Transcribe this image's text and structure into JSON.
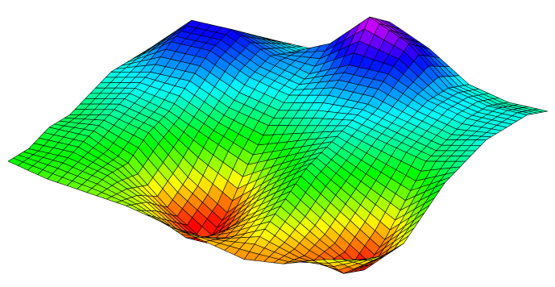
{
  "chart_data": {
    "type": "surface",
    "zlim": [
      -1,
      1
    ],
    "colormap": [
      "#ffff00",
      "#ff0000",
      "#ffff00",
      "#00ff00",
      "#00ffff",
      "#0000ff",
      "#ff00ff"
    ],
    "mesh_color": "#000000",
    "z": [
      [
        0,
        -0.1,
        -0.15,
        -0.2,
        -0.3,
        -0.4,
        -0.5,
        -0.45,
        -0.3,
        -0.2
      ],
      [
        0,
        0,
        -0.1,
        -0.3,
        -0.6,
        -0.5,
        -0.3,
        -0.5,
        -0.6,
        -0.3
      ],
      [
        0.1,
        0.1,
        -0.1,
        -0.5,
        -0.8,
        -0.4,
        -0.1,
        -0.4,
        -0.7,
        -0.3
      ],
      [
        0.1,
        0.2,
        0.1,
        -0.3,
        -0.6,
        -0.2,
        0.1,
        -0.2,
        -0.5,
        -0.1
      ],
      [
        0.2,
        0.3,
        0.2,
        0,
        -0.2,
        0,
        0.2,
        0,
        -0.2,
        0.1
      ],
      [
        0.3,
        0.4,
        0.4,
        0.2,
        0.1,
        0.2,
        0.3,
        0.2,
        0.1,
        0.2
      ],
      [
        0.3,
        0.6,
        0.6,
        0.4,
        0.3,
        0.4,
        0.4,
        0.3,
        0.2,
        0.3
      ],
      [
        0.3,
        0.7,
        0.7,
        0.5,
        0.4,
        0.6,
        0.6,
        0.4,
        0.3,
        0.3
      ],
      [
        0.2,
        0.5,
        0.5,
        0.4,
        0.6,
        1.0,
        0.8,
        0.4,
        0.3,
        0.3
      ],
      [
        0.1,
        0.3,
        0.3,
        0.3,
        0.5,
        0.8,
        0.6,
        0.3,
        0.2,
        0.2
      ]
    ]
  }
}
